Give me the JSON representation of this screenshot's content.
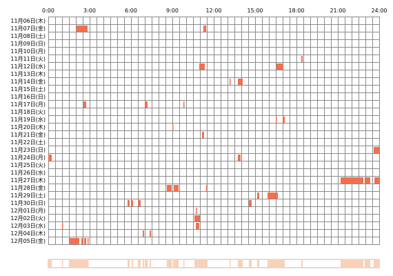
{
  "chart_data": {
    "type": "heatmap",
    "x_ticks": [
      "0:00",
      "3:00",
      "6:00",
      "9:00",
      "12:00",
      "15:00",
      "18:00",
      "21:00",
      "24:00"
    ],
    "x_range_hours": [
      0,
      24
    ],
    "grid": true,
    "colors": {
      "activity": "#f07050",
      "grid": "#8a8a8a",
      "summary_bar": "#f9d0b8"
    },
    "days": [
      {
        "label": "11月06日(木)",
        "intervals": []
      },
      {
        "label": "11月07日(金)",
        "intervals": [
          [
            2.05,
            2.85
          ],
          [
            11.25,
            11.45
          ]
        ]
      },
      {
        "label": "11月08日(土)",
        "intervals": []
      },
      {
        "label": "11月09日(日)",
        "intervals": []
      },
      {
        "label": "11月10日(月)",
        "intervals": []
      },
      {
        "label": "11月11日(火)",
        "intervals": [
          [
            18.35,
            18.45
          ]
        ]
      },
      {
        "label": "11月12日(水)",
        "intervals": [
          [
            10.95,
            11.35
          ],
          [
            16.55,
            17.05
          ]
        ]
      },
      {
        "label": "11月13日(木)",
        "intervals": []
      },
      {
        "label": "11月14日(金)",
        "intervals": [
          [
            13.15,
            13.2
          ],
          [
            13.75,
            14.1
          ]
        ]
      },
      {
        "label": "11月15日(土)",
        "intervals": []
      },
      {
        "label": "11月16日(日)",
        "intervals": []
      },
      {
        "label": "11月17日(月)",
        "intervals": [
          [
            2.55,
            2.75
          ],
          [
            7.0,
            7.2
          ],
          [
            9.8,
            9.85
          ]
        ]
      },
      {
        "label": "11月18日(火)",
        "intervals": []
      },
      {
        "label": "11月19日(水)",
        "intervals": [
          [
            16.5,
            16.55
          ],
          [
            17.0,
            17.15
          ]
        ]
      },
      {
        "label": "11月20日(木)",
        "intervals": [
          [
            9.0,
            9.05
          ]
        ]
      },
      {
        "label": "11月21日(金)",
        "intervals": [
          [
            11.15,
            11.3
          ]
        ]
      },
      {
        "label": "11月22日(土)",
        "intervals": []
      },
      {
        "label": "11月23日(日)",
        "intervals": [
          [
            23.6,
            24.0
          ]
        ]
      },
      {
        "label": "11月24日(月)",
        "intervals": [
          [
            0.0,
            0.25
          ],
          [
            13.75,
            13.95
          ]
        ]
      },
      {
        "label": "11月25日(火)",
        "intervals": []
      },
      {
        "label": "11月26日(水)",
        "intervals": []
      },
      {
        "label": "11月27日(木)",
        "intervals": [
          [
            21.2,
            22.85
          ],
          [
            22.95,
            23.35
          ],
          [
            23.65,
            24.0
          ]
        ]
      },
      {
        "label": "11月28日(金)",
        "intervals": [
          [
            8.6,
            8.95
          ],
          [
            9.1,
            9.45
          ],
          [
            11.45,
            11.55
          ]
        ]
      },
      {
        "label": "11月29日(土)",
        "intervals": [
          [
            15.15,
            15.3
          ],
          [
            15.9,
            16.65
          ]
        ]
      },
      {
        "label": "11月30日(日)",
        "intervals": [
          [
            5.75,
            5.9
          ],
          [
            6.05,
            6.15
          ],
          [
            6.5,
            6.7
          ],
          [
            14.55,
            14.75
          ]
        ]
      },
      {
        "label": "12月01日(月)",
        "intervals": [
          [
            10.7,
            10.75
          ]
        ]
      },
      {
        "label": "12月02日(火)",
        "intervals": [
          [
            10.6,
            11.0
          ]
        ]
      },
      {
        "label": "12月03日(水)",
        "intervals": [
          [
            1.0,
            1.05
          ],
          [
            10.7,
            10.95
          ]
        ]
      },
      {
        "label": "12月04日(木)",
        "intervals": [
          [
            6.85,
            6.95
          ],
          [
            7.35,
            7.45
          ]
        ]
      },
      {
        "label": "12月05日(金)",
        "intervals": [
          [
            1.5,
            2.25
          ],
          [
            2.4,
            2.55
          ],
          [
            2.6,
            2.75
          ],
          [
            2.85,
            2.9
          ]
        ]
      }
    ]
  }
}
